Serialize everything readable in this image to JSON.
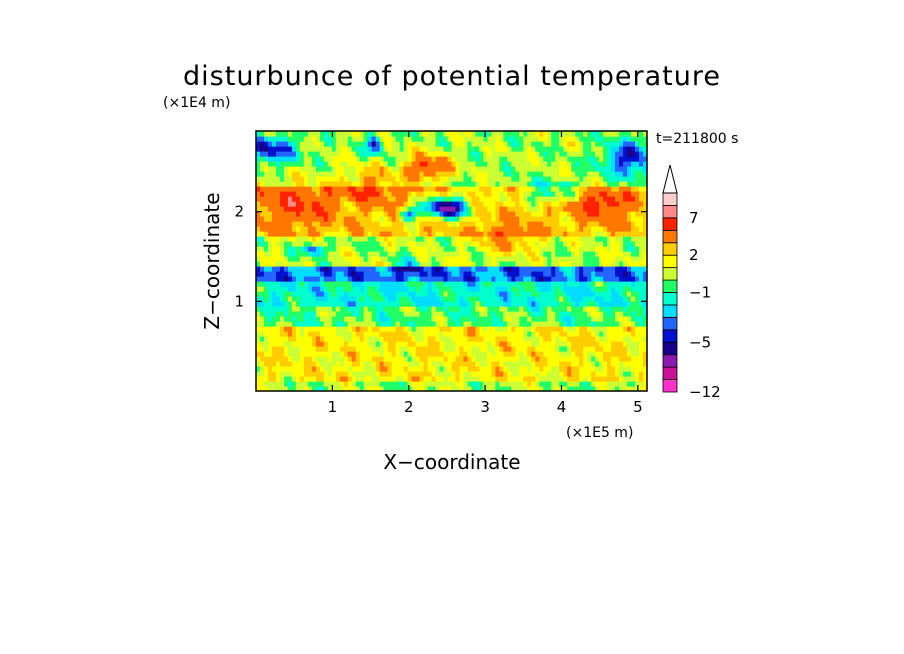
{
  "chart_data": {
    "type": "heatmap",
    "title": "disturbunce of potential temperature",
    "xlabel": "X−coordinate",
    "ylabel": "Z−coordinate",
    "x_unit": "(×1E5 m)",
    "y_unit": "(×1E4 m)",
    "time_label": "t=211800 s",
    "xlim": [
      0,
      5.12
    ],
    "ylim": [
      0,
      2.9
    ],
    "x_ticks": [
      {
        "v": 1,
        "label": "1"
      },
      {
        "v": 2,
        "label": "2"
      },
      {
        "v": 3,
        "label": "3"
      },
      {
        "v": 4,
        "label": "4"
      },
      {
        "v": 5,
        "label": "5"
      }
    ],
    "y_ticks": [
      {
        "v": 1,
        "label": "1"
      },
      {
        "v": 2,
        "label": "2"
      }
    ],
    "colorbar": {
      "levels": [
        -12,
        -10,
        -8,
        -6,
        -5,
        -4,
        -3,
        -2,
        -1,
        0,
        1,
        2,
        3,
        5,
        7,
        9,
        11
      ],
      "colors": [
        "#ff33cc",
        "#cc1199",
        "#8a1ab0",
        "#1a0088",
        "#0011cc",
        "#2266ff",
        "#00ddff",
        "#00ffcc",
        "#22ff66",
        "#ccff33",
        "#ffff00",
        "#ffcc00",
        "#ff7700",
        "#ff2200",
        "#ff8888",
        "#ffcccc"
      ],
      "tick_labels": [
        {
          "v": -12,
          "label": "−12"
        },
        {
          "v": -5,
          "label": "−5"
        },
        {
          "v": -1,
          "label": "−1"
        },
        {
          "v": 2,
          "label": "2"
        },
        {
          "v": 7,
          "label": "7"
        }
      ]
    },
    "bands": [
      {
        "z0": 0.0,
        "z1": 0.12,
        "base": 0.3
      },
      {
        "z0": 0.12,
        "z1": 0.75,
        "base": 1.6
      },
      {
        "z0": 0.75,
        "z1": 0.95,
        "base": -0.4
      },
      {
        "z0": 0.95,
        "z1": 1.2,
        "base": -1.6
      },
      {
        "z0": 1.2,
        "z1": 1.42,
        "base": -3.5
      },
      {
        "z0": 1.42,
        "z1": 1.75,
        "base": 0.5
      },
      {
        "z0": 1.75,
        "z1": 2.3,
        "base": 2.5
      },
      {
        "z0": 2.3,
        "z1": 2.9,
        "base": 0.3
      }
    ],
    "features": [
      {
        "x": 2.5,
        "z": 2.05,
        "rx": 0.3,
        "rz": 0.12,
        "amp": -9
      },
      {
        "x": 2.0,
        "z": 1.98,
        "rx": 0.12,
        "rz": 0.08,
        "amp": -6
      },
      {
        "x": 2.25,
        "z": 2.5,
        "rx": 0.3,
        "rz": 0.15,
        "amp": 5
      },
      {
        "x": 0.15,
        "z": 2.7,
        "rx": 0.4,
        "rz": 0.15,
        "amp": -5
      },
      {
        "x": 1.55,
        "z": 2.75,
        "rx": 0.1,
        "rz": 0.1,
        "amp": -5
      },
      {
        "x": 4.9,
        "z": 2.6,
        "rx": 0.35,
        "rz": 0.2,
        "amp": -5
      },
      {
        "x": 3.85,
        "z": 2.2,
        "rx": 0.4,
        "rz": 0.12,
        "amp": -4
      },
      {
        "x": 4.5,
        "z": 2.1,
        "rx": 0.4,
        "rz": 0.15,
        "amp": 4
      },
      {
        "x": 0.5,
        "z": 2.1,
        "rx": 0.5,
        "rz": 0.25,
        "amp": 3
      },
      {
        "x": 1.5,
        "z": 2.3,
        "rx": 0.4,
        "rz": 0.2,
        "amp": 3
      },
      {
        "x": 3.3,
        "z": 1.7,
        "rx": 0.4,
        "rz": 0.15,
        "amp": 3
      },
      {
        "x": 2.0,
        "z": 1.4,
        "rx": 0.15,
        "rz": 0.1,
        "amp": -3
      },
      {
        "x": 0.75,
        "z": 1.58,
        "rx": 0.15,
        "rz": 0.06,
        "amp": -5
      }
    ]
  }
}
